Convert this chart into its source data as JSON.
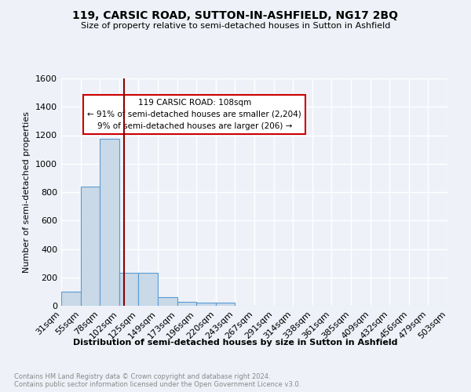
{
  "title": "119, CARSIC ROAD, SUTTON-IN-ASHFIELD, NG17 2BQ",
  "subtitle": "Size of property relative to semi-detached houses in Sutton in Ashfield",
  "xlabel": "Distribution of semi-detached houses by size in Sutton in Ashfield",
  "ylabel": "Number of semi-detached properties",
  "footnote": "Contains HM Land Registry data © Crown copyright and database right 2024.\nContains public sector information licensed under the Open Government Licence v3.0.",
  "annotation_title": "119 CARSIC ROAD: 108sqm",
  "annotation_line1": "← 91% of semi-detached houses are smaller (2,204)",
  "annotation_line2": "9% of semi-detached houses are larger (206) →",
  "bar_edges": [
    31,
    55,
    78,
    102,
    125,
    149,
    173,
    196,
    220,
    243,
    267,
    291,
    314,
    338,
    361,
    385,
    409,
    432,
    456,
    479,
    503
  ],
  "bar_heights": [
    100,
    840,
    1175,
    230,
    230,
    60,
    25,
    20,
    20,
    0,
    0,
    0,
    0,
    0,
    0,
    0,
    0,
    0,
    0,
    0
  ],
  "property_size": 108,
  "bar_color": "#c9d9e8",
  "bar_edge_color": "#5b9bd5",
  "vline_color": "#8b0000",
  "background_color": "#eef2f8",
  "grid_color": "#ffffff",
  "ylim": [
    0,
    1600
  ],
  "yticks": [
    0,
    200,
    400,
    600,
    800,
    1000,
    1200,
    1400,
    1600
  ]
}
